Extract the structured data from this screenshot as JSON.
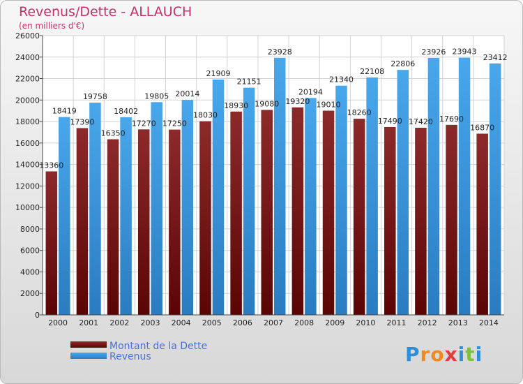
{
  "chart_data": {
    "type": "bar",
    "title": "Revenus/Dette - ALLAUCH",
    "subtitle": "(en milliers d'€)",
    "categories": [
      "2000",
      "2001",
      "2002",
      "2003",
      "2004",
      "2005",
      "2006",
      "2007",
      "2008",
      "2009",
      "2010",
      "2011",
      "2012",
      "2013",
      "2014"
    ],
    "series": [
      {
        "name": "Montant de la Dette",
        "color": "#7b1e1e",
        "values": [
          13360,
          17390,
          16350,
          17270,
          17250,
          18030,
          18930,
          19080,
          19320,
          19010,
          18260,
          17490,
          17420,
          17690,
          16870
        ],
        "labels": [
          "13360",
          "17390",
          "16350",
          "17270",
          "17250",
          "18030",
          "18930",
          "19080",
          "19320",
          "19010",
          "18260",
          "17490",
          "17420",
          "17690",
          "16870"
        ]
      },
      {
        "name": "Revenus",
        "color": "#3d9be0",
        "values": [
          18419,
          19758,
          18402,
          19805,
          20014,
          21909,
          21151,
          23928,
          20194,
          21340,
          22108,
          22806,
          23926,
          23943,
          23412
        ],
        "labels": [
          "18419",
          "19758",
          "18402",
          "19805",
          "20014",
          "21909",
          "21151",
          "23928",
          "20194",
          "21340",
          "22108",
          "22806",
          "23926",
          "23943",
          "23412"
        ]
      }
    ],
    "ylim": [
      0,
      26000
    ],
    "yticks": [
      "0",
      "2000",
      "4000",
      "6000",
      "8000",
      "10000",
      "12000",
      "14000",
      "16000",
      "18000",
      "20000",
      "22000",
      "24000",
      "26000"
    ],
    "ytick_values": [
      0,
      2000,
      4000,
      6000,
      8000,
      10000,
      12000,
      14000,
      16000,
      18000,
      20000,
      22000,
      24000,
      26000
    ],
    "grid": true,
    "legend": "bottom-left"
  },
  "brand": {
    "letters": [
      "P",
      "r",
      "o",
      "x",
      "i",
      "t",
      "i"
    ],
    "colors": [
      "#2e8fd8",
      "#f08a1c",
      "#f08a1c",
      "#e23b3b",
      "#2e8fd8",
      "#7cc142",
      "#2e8fd8"
    ]
  }
}
